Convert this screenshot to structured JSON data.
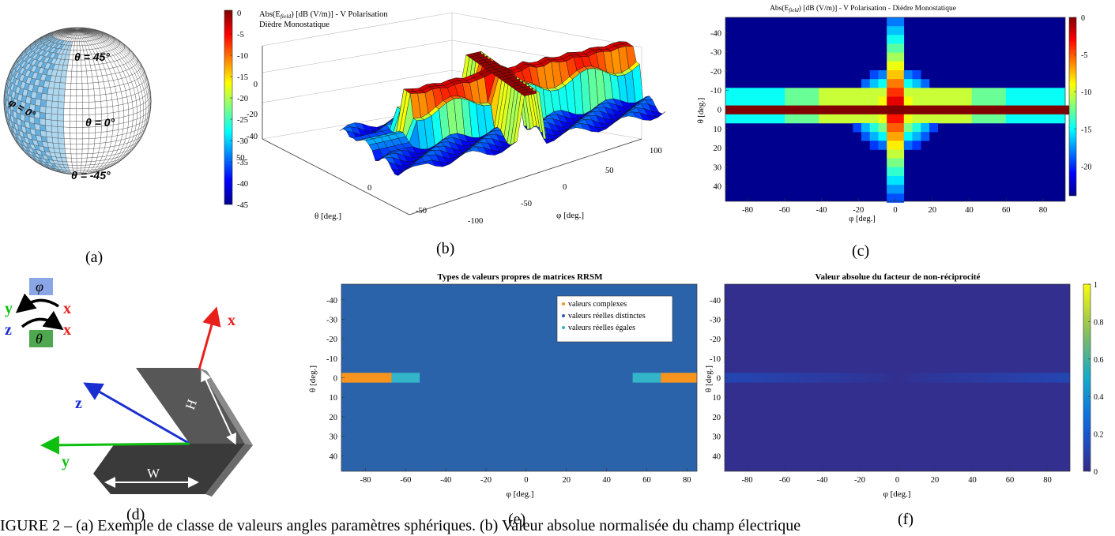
{
  "labels": {
    "a": "(a)",
    "b": "(b)",
    "c": "(c)",
    "d": "(d)",
    "e": "(e)",
    "f": "(f)"
  },
  "caption": "IGURE 2 – (a) Exemple de classe de valeurs angles paramètres sphériques. (b) Valeur absolue normalisée du champ électrique",
  "sphere": {
    "labels": [
      "θ = 45°",
      "φ = 0°",
      "θ = 0°",
      "θ = -45°"
    ]
  },
  "colors": {
    "red": "#e8201c",
    "green": "#0fbf0f",
    "blue": "#1a2fd0",
    "phi_box": "#8aa6e6",
    "theta_box": "#4fa84f"
  },
  "dihedral": {
    "phi": "φ",
    "theta": "θ",
    "axes": {
      "x": "x",
      "y": "y",
      "z": "z"
    },
    "dims": {
      "H": "H",
      "W": "W"
    }
  },
  "chart_data": [
    {
      "id": "b",
      "type": "surface",
      "title": [
        "Abs(E",
        "field",
        ") [dB (V/m)] - V Polarisation",
        "Dièdre Monostatique"
      ],
      "xlabel": "θ [deg.]",
      "ylabel": "φ [deg.]",
      "zticks": [
        "0",
        "-20",
        "-40"
      ],
      "theta_ticks": [
        "50",
        "0",
        "-50"
      ],
      "phi_ticks": [
        "100",
        "50",
        "0",
        "-50",
        "-100"
      ],
      "colorbar_ticks": [
        "0",
        "-5",
        "-10",
        "-15",
        "-20",
        "-25",
        "-30",
        "-35",
        "-40",
        "-45"
      ],
      "clim": [
        -48,
        0
      ],
      "colormap": "jet"
    },
    {
      "id": "c",
      "type": "heatmap",
      "title": [
        "Abs(E",
        "field",
        ") [dB (V/m)] - V Polarisation - Dièdre Monostatique"
      ],
      "xlabel": "φ [deg.]",
      "ylabel": "θ [deg.]",
      "xticks": [
        "-80",
        "-60",
        "-40",
        "-20",
        "0",
        "20",
        "40",
        "60",
        "80"
      ],
      "yticks": [
        "-40",
        "-30",
        "-20",
        "-10",
        "0",
        "10",
        "20",
        "30",
        "40"
      ],
      "xlim": [
        -92,
        92
      ],
      "ylim": [
        -48,
        48
      ],
      "colorbar_ticks": [
        "0",
        "-5",
        "-10",
        "-15",
        "-20"
      ],
      "clim": [
        -24,
        0
      ],
      "colormap": "jet"
    },
    {
      "id": "e",
      "type": "heatmap",
      "title": "Types de valeurs propres de matrices RRSM",
      "xlabel": "φ [deg.]",
      "ylabel": "θ [deg.]",
      "xticks": [
        "-80",
        "-60",
        "-40",
        "-20",
        "0",
        "20",
        "40",
        "60",
        "80"
      ],
      "yticks": [
        "-40",
        "-30",
        "-20",
        "-10",
        "0",
        "10",
        "20",
        "30",
        "40"
      ],
      "xlim": [
        -92,
        85
      ],
      "ylim": [
        -48,
        48
      ],
      "legend": [
        "valeurs complexes",
        "valeurs réelles distinctes",
        "valeurs réelles égales"
      ],
      "legend_colors": [
        "#f7941d",
        "#2f5fa8",
        "#33b5c9"
      ],
      "background": "#2b63ab",
      "segments": [
        {
          "x0": -92,
          "x1": -67,
          "class": 0
        },
        {
          "x0": -67,
          "x1": -53,
          "class": 2
        },
        {
          "x0": 53,
          "x1": 67,
          "class": 2
        },
        {
          "x0": 67,
          "x1": 85,
          "class": 0
        }
      ]
    },
    {
      "id": "f",
      "type": "heatmap",
      "title": "Valeur absolue du facteur de non-réciprocité",
      "xlabel": "φ [deg.]",
      "ylabel": "θ [deg.]",
      "xticks": [
        "-80",
        "-60",
        "-40",
        "-20",
        "0",
        "20",
        "40",
        "60",
        "80"
      ],
      "yticks": [
        "-40",
        "-30",
        "-20",
        "-10",
        "0",
        "10",
        "20",
        "30",
        "40"
      ],
      "xlim": [
        -92,
        92
      ],
      "ylim": [
        -48,
        48
      ],
      "colorbar_ticks": [
        "1",
        "0.8",
        "0.6",
        "0.4",
        "0.2",
        "0"
      ],
      "clim": [
        0,
        1
      ],
      "colormap": "parula",
      "band_value": 0.12,
      "background_value": 0.02
    }
  ]
}
